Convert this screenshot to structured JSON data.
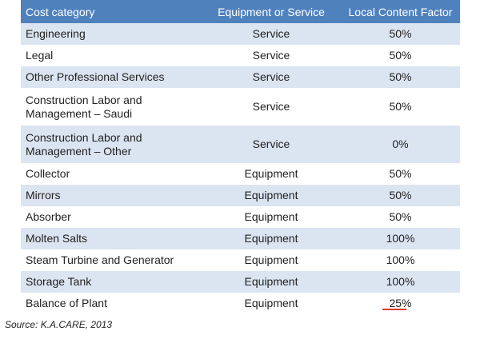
{
  "table": {
    "headers": [
      "Cost category",
      "Equipment or Service",
      "Local Content Factor"
    ],
    "rows": [
      {
        "category": "Engineering",
        "type": "Service",
        "factor": "50%"
      },
      {
        "category": "Legal",
        "type": "Service",
        "factor": "50%"
      },
      {
        "category": "Other Professional Services",
        "type": "Service",
        "factor": "50%"
      },
      {
        "category": "Construction Labor and Management – Saudi",
        "type": "Service",
        "factor": "50%"
      },
      {
        "category": "Construction Labor and Management – Other",
        "type": "Service",
        "factor": "0%"
      },
      {
        "category": "Collector",
        "type": "Equipment",
        "factor": "50%"
      },
      {
        "category": "Mirrors",
        "type": "Equipment",
        "factor": "50%"
      },
      {
        "category": "Absorber",
        "type": "Equipment",
        "factor": "50%"
      },
      {
        "category": "Molten Salts",
        "type": "Equipment",
        "factor": "100%"
      },
      {
        "category": "Steam Turbine and Generator",
        "type": "Equipment",
        "factor": "100%"
      },
      {
        "category": "Storage Tank",
        "type": "Equipment",
        "factor": "100%"
      },
      {
        "category": "Balance of Plant",
        "type": "Equipment",
        "factor": "25%"
      }
    ]
  },
  "source": "Source: K.A.CARE, 2013",
  "colors": {
    "header_bg": "#4f81bd",
    "header_text": "#ffffff",
    "row_shade": "#dbe5f1",
    "spellcheck_underline": "#e03a1e"
  }
}
